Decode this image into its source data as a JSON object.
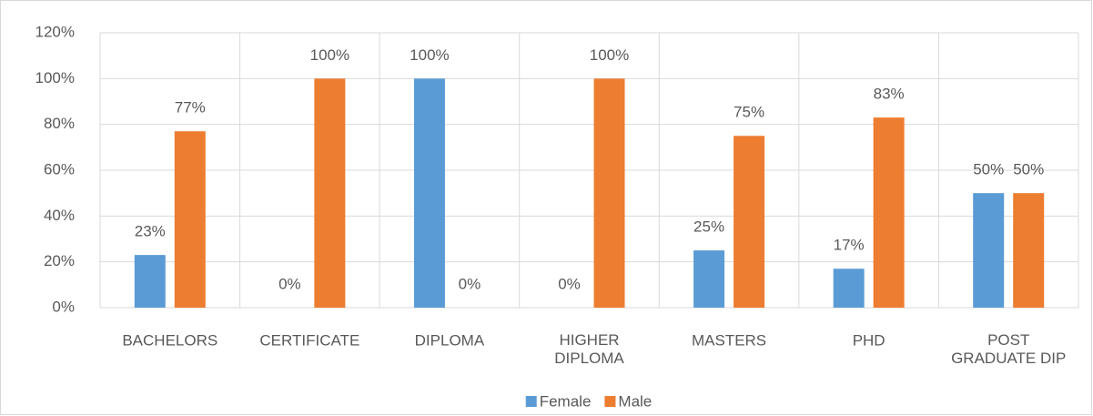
{
  "chart_data": {
    "type": "bar",
    "categories": [
      "BACHELORS",
      "CERTIFICATE",
      "DIPLOMA",
      "HIGHER DIPLOMA",
      "MASTERS",
      "PHD",
      "POST GRADUATE DIP"
    ],
    "series": [
      {
        "name": "Female",
        "color": "#5b9bd5",
        "values": [
          23,
          0,
          100,
          0,
          25,
          17,
          50
        ],
        "value_labels": [
          "23%",
          "0%",
          "100%",
          "0%",
          "25%",
          "17%",
          "50%"
        ]
      },
      {
        "name": "Male",
        "color": "#ed7d31",
        "values": [
          77,
          100,
          0,
          100,
          75,
          83,
          50
        ],
        "value_labels": [
          "77%",
          "100%",
          "0%",
          "100%",
          "75%",
          "83%",
          "50%"
        ]
      }
    ],
    "ylim": [
      0,
      120
    ],
    "yticks": [
      {
        "value": 0,
        "label": "0%"
      },
      {
        "value": 20,
        "label": "20%"
      },
      {
        "value": 40,
        "label": "40%"
      },
      {
        "value": 60,
        "label": "60%"
      },
      {
        "value": 80,
        "label": "80%"
      },
      {
        "value": 100,
        "label": "100%"
      },
      {
        "value": 120,
        "label": "120%"
      }
    ],
    "grid": true,
    "legend": "bottom"
  }
}
